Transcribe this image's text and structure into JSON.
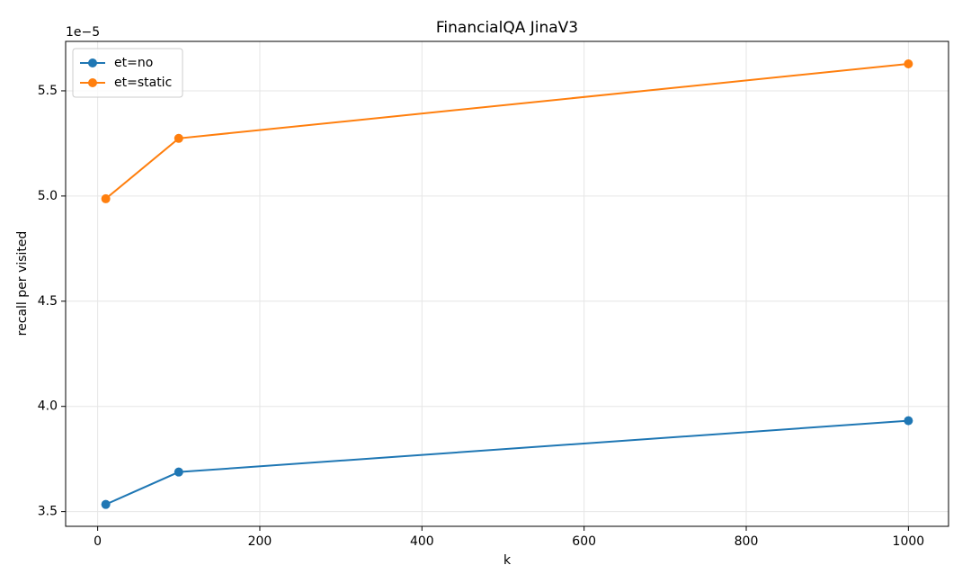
{
  "chart_data": {
    "type": "line",
    "title": "FinancialQA JinaV3",
    "x_label": "k",
    "y_label": "recall per visited",
    "y_offset_label": "1e−5",
    "x": [
      10,
      100,
      1000
    ],
    "series": [
      {
        "name": "et=no",
        "color": "#1f77b4",
        "values": [
          3.534,
          3.688,
          3.932
        ]
      },
      {
        "name": "et=static",
        "color": "#ff7f0e",
        "values": [
          4.987,
          5.274,
          5.628
        ]
      }
    ],
    "xlim": [
      -39.5,
      1049.5
    ],
    "xticks": [
      0,
      200,
      400,
      600,
      800,
      1000
    ],
    "ylim": [
      3.43,
      5.735
    ],
    "yticks": [
      3.5,
      {
        "value": 4,
        "label": "4.0"
      },
      4.5,
      {
        "value": 5,
        "label": "5.0"
      },
      5.5
    ],
    "grid": true,
    "legend": "upper left",
    "markers": true
  }
}
